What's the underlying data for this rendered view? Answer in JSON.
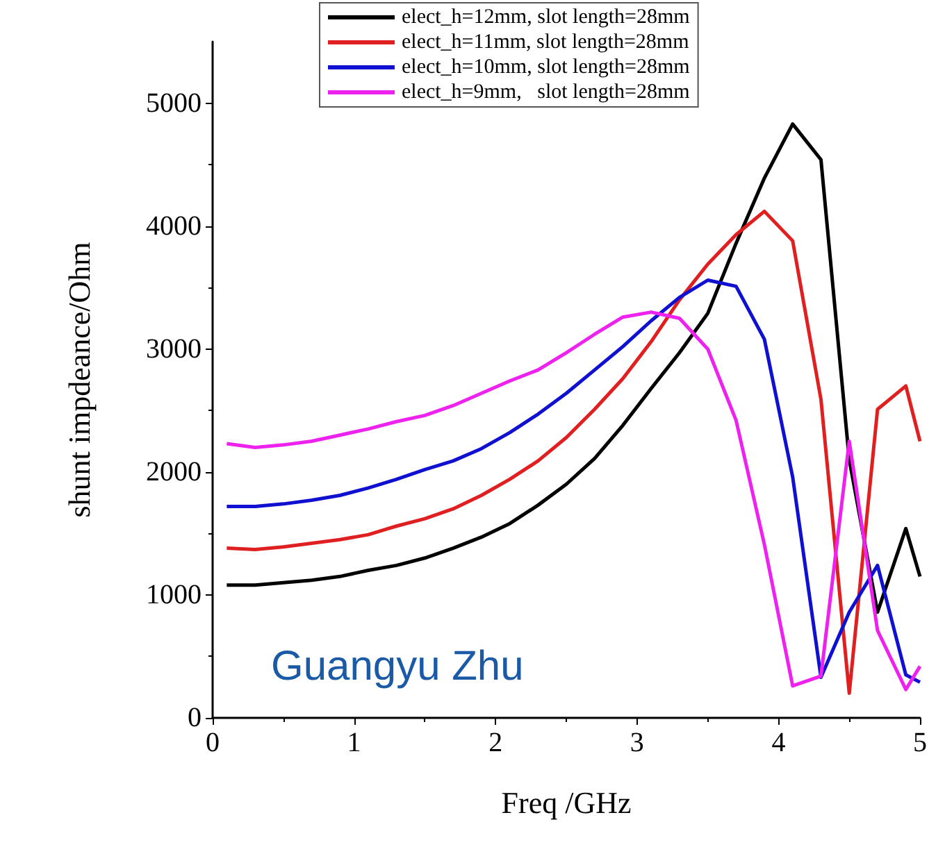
{
  "chart_data": {
    "type": "line",
    "xlabel": "Freq /GHz",
    "ylabel": "shunt impdeance/Ohm",
    "xlim": [
      0,
      5
    ],
    "xticks": [
      0,
      1,
      2,
      3,
      4,
      5
    ],
    "ylim": [
      0,
      5500
    ],
    "yticks": [
      0,
      1000,
      2000,
      3000,
      4000,
      5000
    ],
    "grid": false,
    "legend": "top",
    "marker": "none",
    "line_style": "solid",
    "x": [
      0.1,
      0.3,
      0.5,
      0.7,
      0.9,
      1.1,
      1.3,
      1.5,
      1.7,
      1.9,
      2.1,
      2.3,
      2.5,
      2.7,
      2.9,
      3.1,
      3.3,
      3.5,
      3.7,
      3.9,
      4.1,
      4.3,
      4.5,
      4.7,
      4.9,
      5.0
    ],
    "series": [
      {
        "name": "elect_h=12mm, slot length=28mm",
        "color": "#000000",
        "values": [
          1080,
          1080,
          1100,
          1120,
          1150,
          1200,
          1240,
          1300,
          1380,
          1470,
          1580,
          1730,
          1900,
          2110,
          2380,
          2680,
          2970,
          3290,
          3860,
          4390,
          4830,
          4540,
          2100,
          860,
          1540,
          1150
        ]
      },
      {
        "name": "elect_h=11mm, slot length=28mm",
        "color": "#e02020",
        "values": [
          1380,
          1370,
          1390,
          1420,
          1450,
          1490,
          1560,
          1620,
          1700,
          1810,
          1940,
          2090,
          2280,
          2510,
          2760,
          3060,
          3400,
          3690,
          3930,
          4120,
          3880,
          2590,
          200,
          2510,
          2700,
          2250
        ]
      },
      {
        "name": "elect_h=10mm, slot length=28mm",
        "color": "#1010d0",
        "values": [
          1720,
          1720,
          1740,
          1770,
          1810,
          1870,
          1940,
          2020,
          2090,
          2190,
          2320,
          2470,
          2640,
          2830,
          3020,
          3230,
          3420,
          3560,
          3510,
          3080,
          1960,
          330,
          860,
          1240,
          350,
          290
        ]
      },
      {
        "name": "elect_h=9mm,   slot length=28mm",
        "color": "#ee22ee",
        "values": [
          2230,
          2200,
          2220,
          2250,
          2300,
          2350,
          2410,
          2460,
          2540,
          2640,
          2740,
          2830,
          2970,
          3120,
          3260,
          3300,
          3250,
          3000,
          2420,
          1410,
          260,
          340,
          2250,
          710,
          230,
          420
        ]
      }
    ],
    "annotations": [
      "Guangyu Zhu"
    ]
  }
}
